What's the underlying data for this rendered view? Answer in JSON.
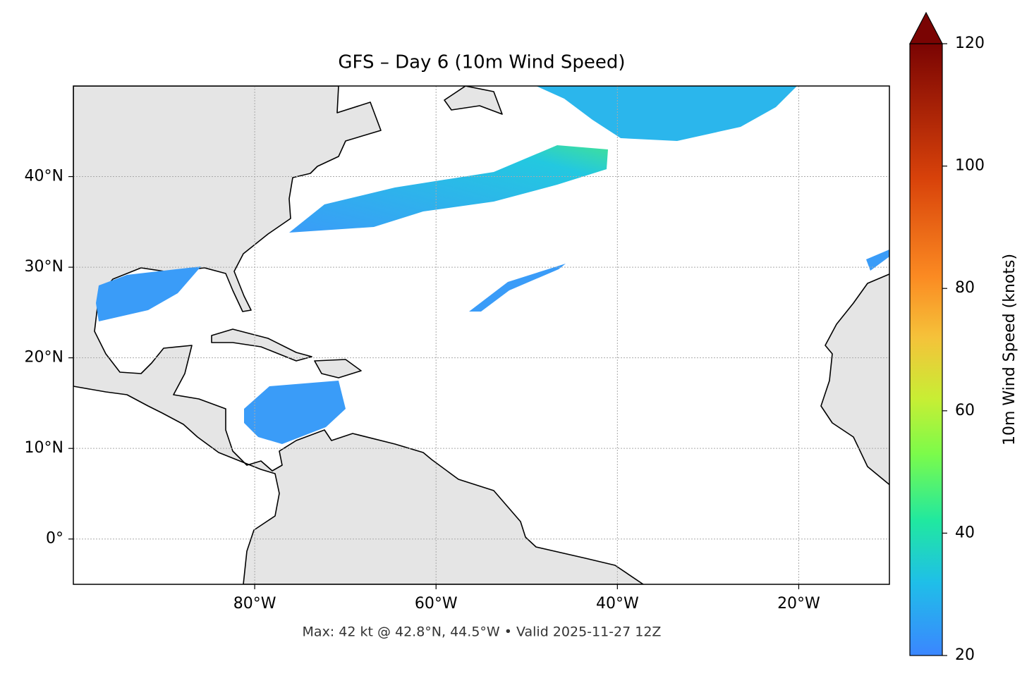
{
  "map": {
    "title": "GFS – Day 6 (10m Wind Speed)",
    "footer": "Max: 42 kt @ 42.8°N, 44.5°W • Valid 2025-11-27 12Z",
    "xlim": [
      -100,
      -10
    ],
    "ylim": [
      -5,
      50
    ],
    "xticks": [
      {
        "value": -80,
        "label": "80°W"
      },
      {
        "value": -60,
        "label": "60°W"
      },
      {
        "value": -40,
        "label": "40°W"
      },
      {
        "value": -20,
        "label": "20°W"
      }
    ],
    "yticks": [
      {
        "value": 0,
        "label": "0°"
      },
      {
        "value": 10,
        "label": "10°N"
      },
      {
        "value": 20,
        "label": "20°N"
      },
      {
        "value": 30,
        "label": "30°N"
      },
      {
        "value": 40,
        "label": "40°N"
      }
    ],
    "grid": true,
    "colorbar": {
      "label": "10m Wind Speed (knots)",
      "lim": [
        20,
        120
      ],
      "ticks": [
        20,
        40,
        60,
        80,
        100,
        120
      ]
    }
  }
}
